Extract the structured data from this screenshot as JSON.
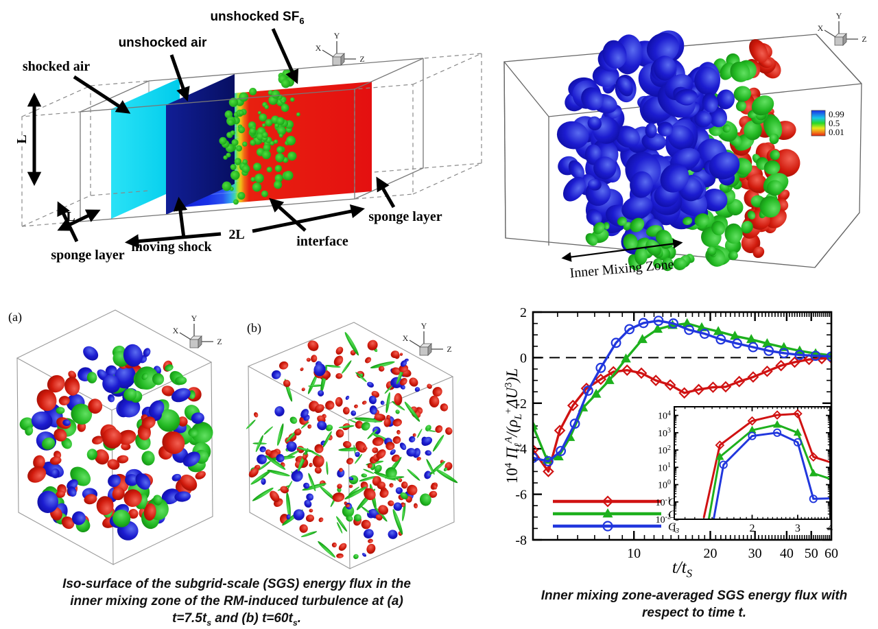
{
  "schematic": {
    "labels": {
      "shocked_air": "shocked air",
      "unshocked_air": "unshocked air",
      "unshocked_sf6": "unshocked SF",
      "unshocked_sf6_sub": "6",
      "sponge_left": "sponge layer",
      "sponge_right": "sponge layer",
      "moving_shock": "moving shock",
      "interface": "interface",
      "dim_height": "L",
      "dim_depth": "L",
      "dim_length": "2L"
    },
    "triad": {
      "x": "X",
      "y": "Y",
      "z": "Z"
    }
  },
  "izm": {
    "colorbar_values": [
      "0.99",
      "0.5",
      "0.01"
    ],
    "zone_label": "Inner Mixing Zone",
    "triad": {
      "x": "X",
      "y": "Y",
      "z": "Z"
    }
  },
  "snapshots": {
    "a_label": "(a)",
    "b_label": "(b)",
    "triad": {
      "x": "X",
      "y": "Y",
      "z": "Z"
    }
  },
  "captions": {
    "left": [
      "Iso-surface of the subgrid-scale (SGS) energy flux in the",
      "inner mixing zone of the RM-induced turbulence at (a)"
    ],
    "left_sub_parts": [
      "t=7.5t",
      "s",
      " and (b) t=60t",
      "s",
      "."
    ],
    "right": [
      "Inner mixing zone-averaged SGS energy flux with",
      "respect to time t."
    ]
  },
  "chart_data": {
    "type": "line",
    "title": "",
    "xlabel": "t/t_S",
    "ylabel": "10^4 PI_l^A/(rho_L^+ DeltaU^3)L",
    "xlabel_parts": [
      {
        "t": "t/t",
        "i": 1
      },
      {
        "t": "S",
        "p": "sub",
        "i": 1
      }
    ],
    "ylabel_parts": [
      {
        "t": "10"
      },
      {
        "t": "4",
        "p": "sup"
      },
      {
        "t": " Π",
        "i": 1
      },
      {
        "t": "ℓ",
        "p": "sub",
        "i": 1
      },
      {
        "t": "A",
        "p": "sup",
        "i": 1
      },
      {
        "t": "/(ρ",
        "i": 1
      },
      {
        "t": "L",
        "p": "sub",
        "i": 1
      },
      {
        "t": "+",
        "p": "sup"
      },
      {
        "t": "ΔU",
        "i": 1
      },
      {
        "t": "3",
        "p": "sup"
      },
      {
        "t": ")L",
        "i": 1
      }
    ],
    "x_scale": "log",
    "xlim": [
      4,
      60
    ],
    "ylim": [
      -8,
      2
    ],
    "x_ticks": [
      10,
      20,
      30,
      40,
      50,
      60
    ],
    "y_ticks": [
      2,
      0,
      -2,
      -4,
      -6,
      -8
    ],
    "zero_line": true,
    "grid": false,
    "legend_position": "lower-left",
    "series": [
      {
        "name": "C1",
        "label_main": "C",
        "label_sub": "1",
        "color": "#d01212",
        "marker": "diamond",
        "x": [
          4.0,
          4.6,
          5.1,
          5.75,
          6.5,
          7.4,
          8.3,
          9.4,
          10.7,
          12.2,
          13.9,
          15.8,
          18,
          20.5,
          23,
          26,
          29.5,
          33.5,
          38,
          43,
          49,
          55,
          60
        ],
        "y": [
          -4.05,
          -5.0,
          -3.2,
          -2.1,
          -1.35,
          -0.95,
          -0.62,
          -0.55,
          -0.68,
          -1.0,
          -1.2,
          -1.55,
          -1.4,
          -1.3,
          -1.28,
          -1.05,
          -0.85,
          -0.6,
          -0.35,
          -0.2,
          -0.08,
          -0.04,
          -0.02
        ]
      },
      {
        "name": "C2",
        "label_main": "C",
        "label_sub": "2",
        "color": "#1db01d",
        "marker": "triangle",
        "x": [
          4.0,
          4.55,
          5.05,
          5.6,
          6.3,
          7.1,
          8.0,
          9.3,
          10.8,
          12.4,
          14.2,
          16.2,
          18.5,
          21.5,
          25,
          29,
          33.5,
          39,
          45,
          52,
          60
        ],
        "y": [
          -3.0,
          -4.5,
          -4.35,
          -3.5,
          -2.2,
          -1.6,
          -1.0,
          -0.05,
          0.8,
          1.25,
          1.42,
          1.5,
          1.32,
          1.15,
          0.95,
          0.8,
          0.62,
          0.45,
          0.3,
          0.18,
          0.1
        ]
      },
      {
        "name": "C3",
        "label_main": "C",
        "label_sub": "3",
        "color": "#2137dd",
        "marker": "circle",
        "x": [
          4.0,
          4.6,
          5.15,
          5.85,
          6.6,
          7.4,
          8.5,
          9.6,
          10.9,
          12.5,
          14.3,
          16.5,
          19,
          22,
          25.5,
          29.5,
          34,
          39,
          45,
          52,
          60
        ],
        "y": [
          -4.4,
          -4.55,
          -4.1,
          -2.9,
          -1.45,
          -0.45,
          0.65,
          1.25,
          1.52,
          1.62,
          1.5,
          1.22,
          1.05,
          0.8,
          0.62,
          0.46,
          0.3,
          0.2,
          0.12,
          0.08,
          0.05
        ]
      }
    ],
    "inset": {
      "x_scale": "log",
      "y_scale": "log",
      "xlim": [
        1,
        4
      ],
      "ylim_exponents": [
        -2,
        4.5
      ],
      "x_ticks": [
        1,
        2,
        3,
        4
      ],
      "y_tick_exponents": [
        4,
        3,
        2,
        1,
        0,
        -1,
        -2
      ],
      "series": [
        {
          "name": "C1",
          "color": "#d01212",
          "marker": "diamond",
          "x": [
            1.3,
            1.5,
            2.0,
            2.5,
            3.0,
            3.45,
            4.0
          ],
          "y": [
            0.012,
            190,
            4800,
            10500,
            12500,
            40,
            20
          ]
        },
        {
          "name": "C2",
          "color": "#1db01d",
          "marker": "triangle",
          "x": [
            1.36,
            1.5,
            2.0,
            2.5,
            3.0,
            3.45,
            4.0
          ],
          "y": [
            0.01,
            40,
            1400,
            2900,
            1000,
            4.5,
            2.2
          ]
        },
        {
          "name": "C3",
          "color": "#2137dd",
          "marker": "circle",
          "x": [
            1.42,
            1.55,
            2.0,
            2.5,
            3.0,
            3.45,
            4.0
          ],
          "y": [
            0.01,
            14,
            650,
            1000,
            280,
            0.15,
            0.16
          ]
        }
      ]
    }
  },
  "colors": {
    "shocked_air_plane": "#12d8f0",
    "shock_plane": "#0a1478",
    "sf6_plane": "#e61010",
    "iso_blue": "#1414c8",
    "iso_green": "#1db01d",
    "iso_red": "#c81208"
  }
}
